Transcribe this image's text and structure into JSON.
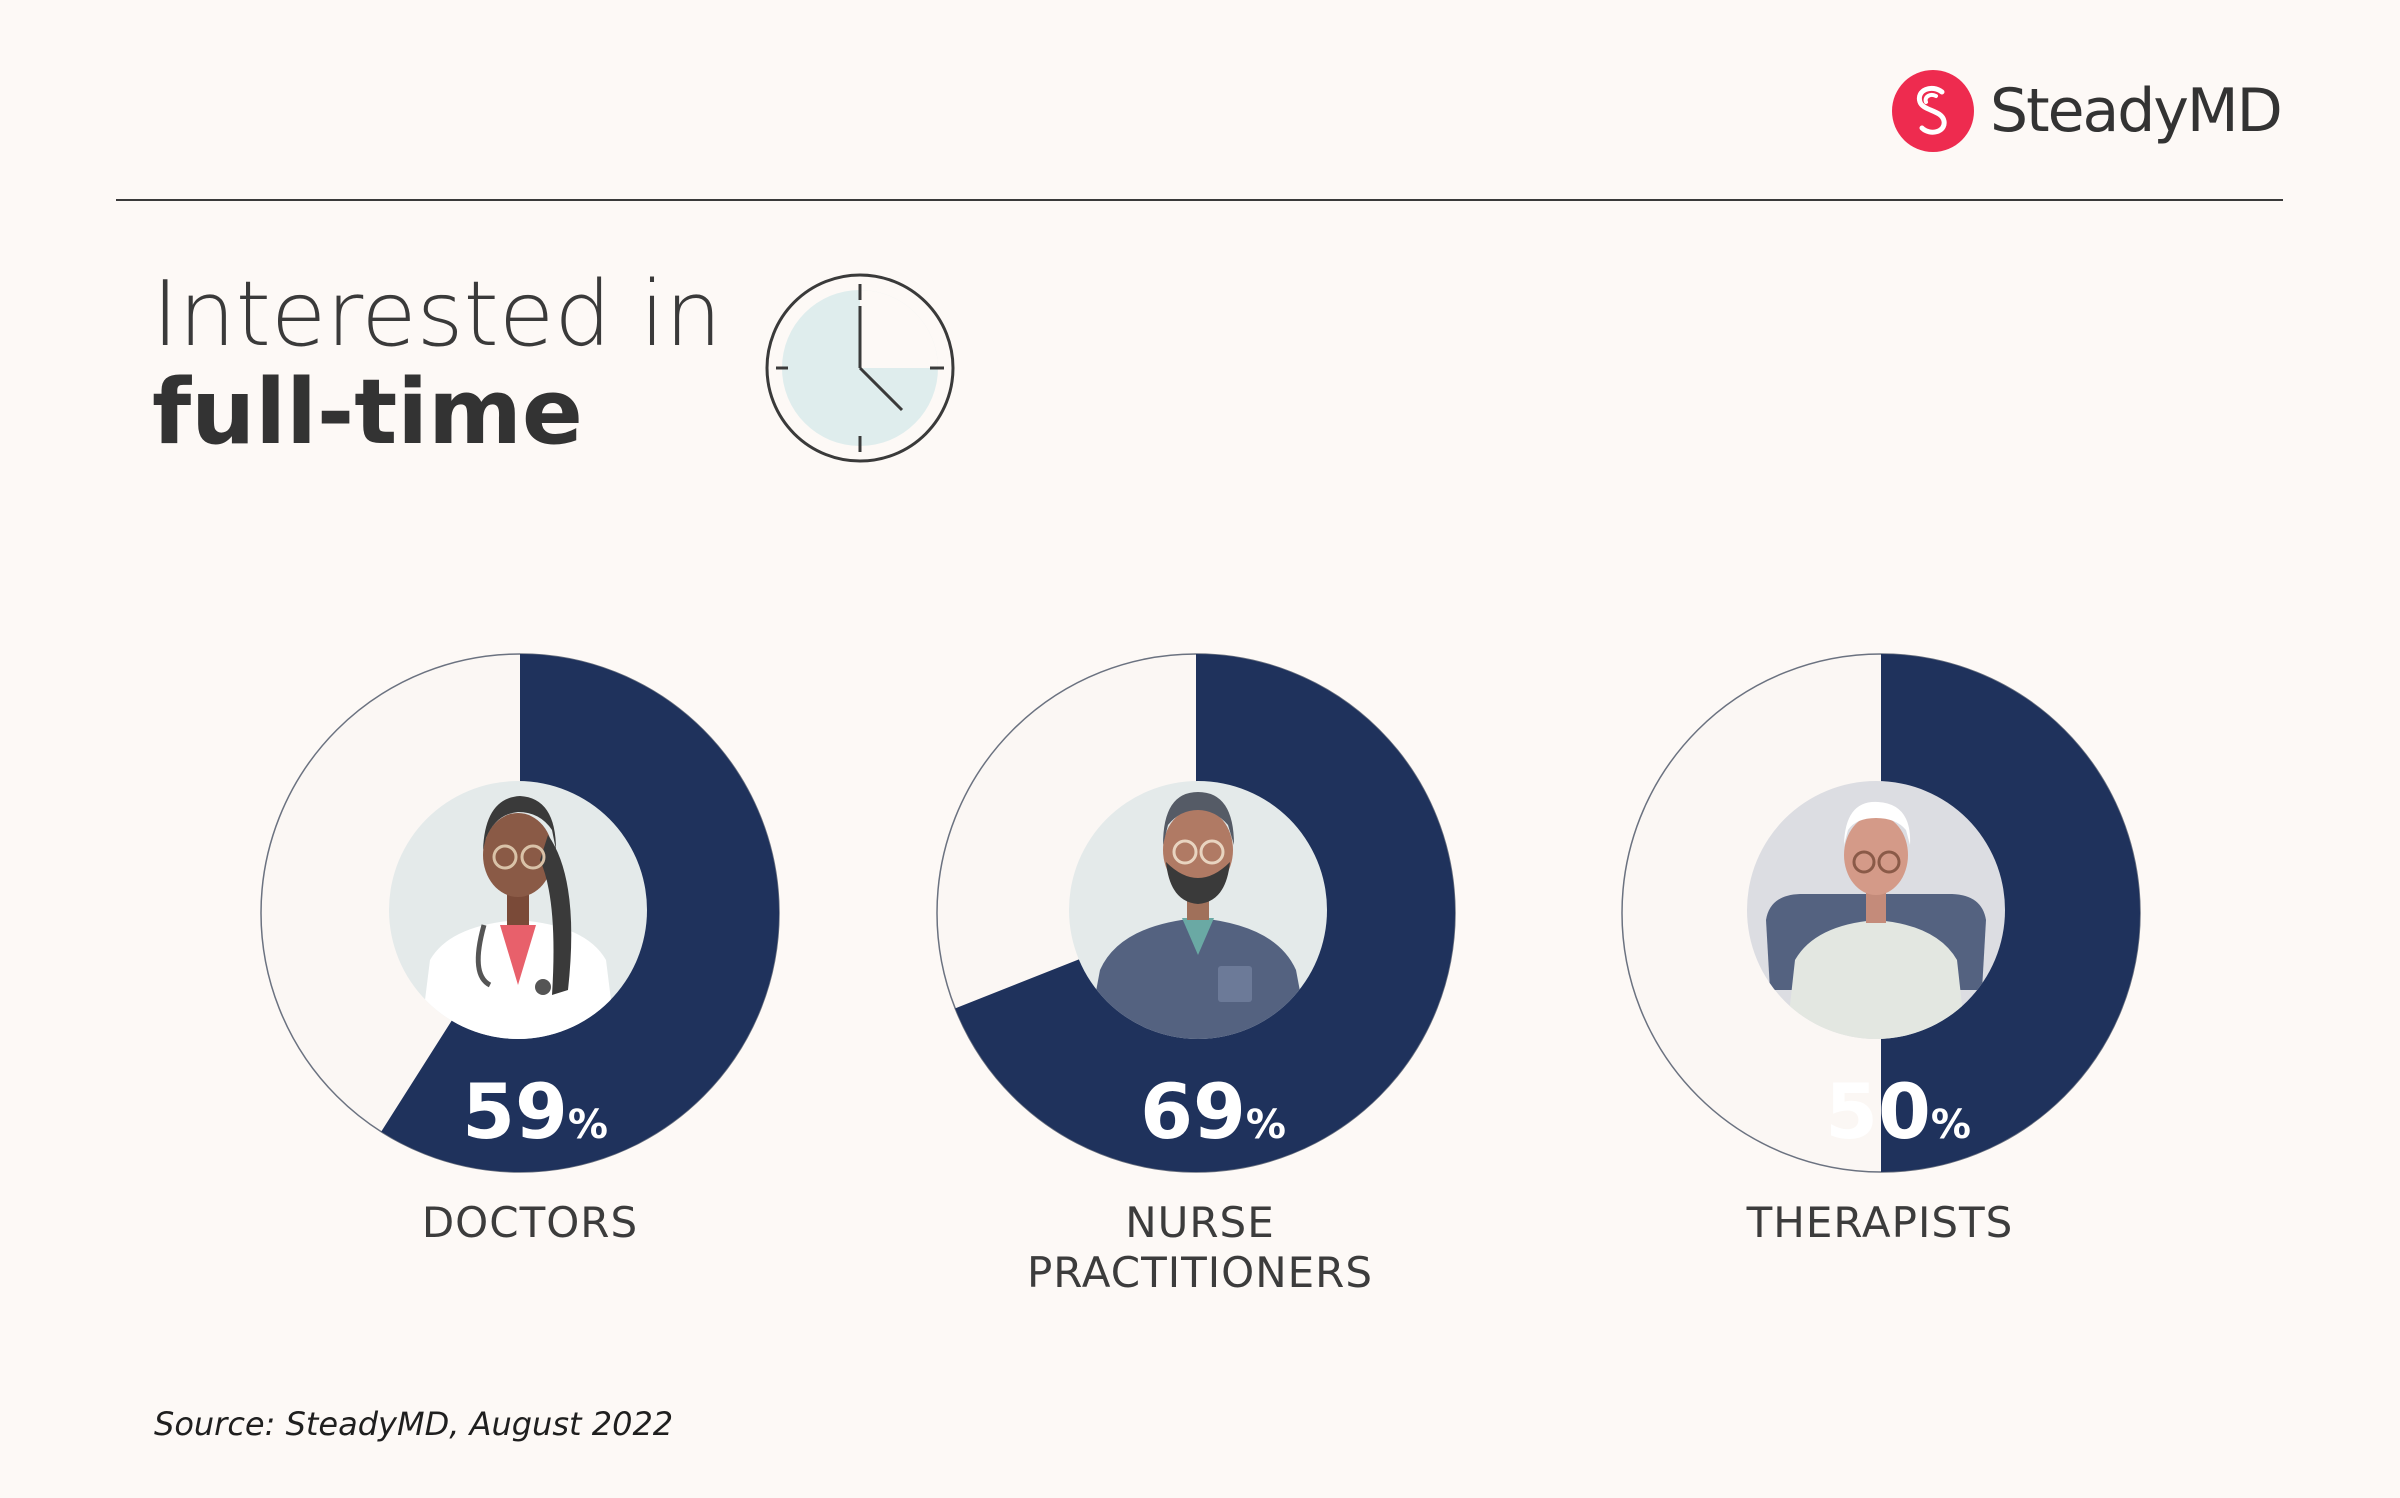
{
  "brand": {
    "name": "SteadyMD",
    "accent_color": "#ee2b4f",
    "logo_icon": "steadymd-s-logo-icon"
  },
  "header": {
    "title_line1": "Interested in",
    "title_line2": "full-time",
    "icon": "clock-icon"
  },
  "chart_data": {
    "type": "pie",
    "subtype": "donut",
    "unit": "%",
    "categories": [
      "DOCTORS",
      "NURSE PRACTITIONERS",
      "THERAPISTS"
    ],
    "values": [
      59,
      69,
      50
    ],
    "colors": {
      "filled": "#1f325c",
      "empty": "#fbf7f4",
      "ring_outline": "#6b7280"
    },
    "icons": [
      "doctor-avatar-icon",
      "nurse-practitioner-avatar-icon",
      "therapist-avatar-icon"
    ]
  },
  "labels": {
    "doctors": "DOCTORS",
    "nurse_line1": "NURSE",
    "nurse_line2": "PRACTITIONERS",
    "therapists": "THERAPISTS"
  },
  "footer": {
    "source": "Source: SteadyMD, August 2022"
  }
}
